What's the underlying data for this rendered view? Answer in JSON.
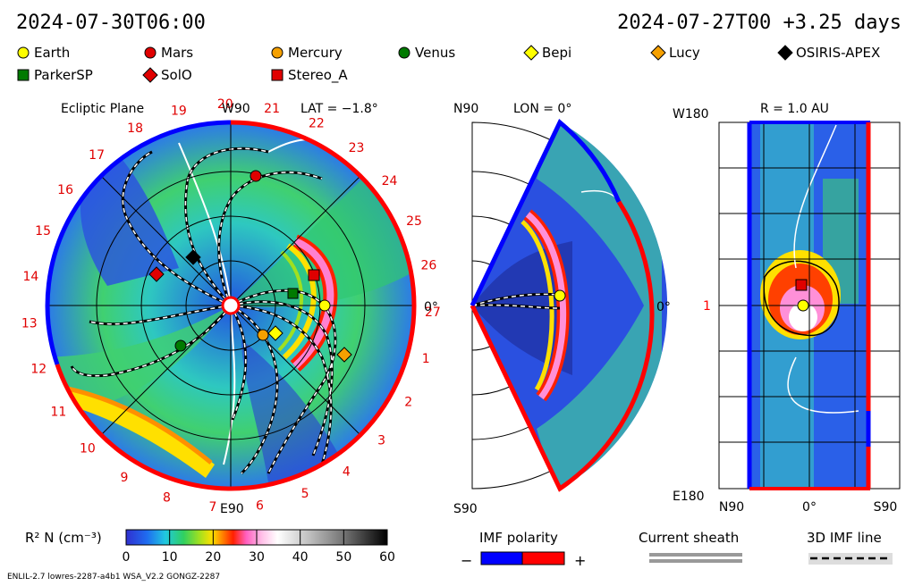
{
  "header": {
    "sim_time": "2024-07-30T06:00",
    "ref_time": "2024-07-27T00 +3.25 days"
  },
  "legend": [
    {
      "label": "Earth",
      "shape": "circle",
      "color": "#ffff00"
    },
    {
      "label": "Mars",
      "shape": "circle",
      "color": "#e00000"
    },
    {
      "label": "Mercury",
      "shape": "circle",
      "color": "#f5a000"
    },
    {
      "label": "Venus",
      "shape": "circle",
      "color": "#007a00"
    },
    {
      "label": "Bepi",
      "shape": "diamond",
      "color": "#ffff00"
    },
    {
      "label": "Lucy",
      "shape": "diamond",
      "color": "#f5a000"
    },
    {
      "label": "OSIRIS-APEX",
      "shape": "diamond",
      "color": "#000000"
    },
    {
      "label": "ParkerSP",
      "shape": "square",
      "color": "#007a00"
    },
    {
      "label": "SolO",
      "shape": "diamond",
      "color": "#e00000"
    },
    {
      "label": "Stereo_A",
      "shape": "square",
      "color": "#e00000"
    }
  ],
  "panels": {
    "ecliptic": {
      "title": "Ecliptic Plane",
      "top": "W90",
      "bottom": "E90",
      "right": "0°",
      "lat": "LAT = −1.8°",
      "sectors": [
        "19",
        "20",
        "21",
        "22",
        "23",
        "24",
        "25",
        "26",
        "27",
        "1",
        "2",
        "3",
        "4",
        "5",
        "6",
        "7",
        "8",
        "9",
        "10",
        "11",
        "12",
        "13",
        "14",
        "15",
        "16",
        "17",
        "18"
      ]
    },
    "meridional": {
      "top": "N90",
      "bottom": "S90",
      "lon": "LON = 0°",
      "right": "0°"
    },
    "sphere": {
      "top_left": "W180",
      "title": "R = 1.0 AU",
      "left_mid": "1",
      "bottom_left": "E180",
      "x_axis": [
        "N90",
        "0°",
        "S90"
      ]
    }
  },
  "chart_data": [
    {
      "type": "heatmap",
      "title": "",
      "colorbar": {
        "label": "R² N (cm⁻³)",
        "ticks": [
          0,
          10,
          20,
          30,
          40,
          50,
          60
        ],
        "range": [
          0,
          60
        ],
        "colors": [
          "#3030d0",
          "#1f8cf0",
          "#20e0d0",
          "#30d060",
          "#a0e020",
          "#ffe000",
          "#ff8000",
          "#ff2000",
          "#ff60c0",
          "#ffb0e0",
          "#ffffff",
          "#c0c0c0",
          "#808080",
          "#404040",
          "#000000"
        ]
      }
    }
  ],
  "keys": {
    "imf_label": "IMF polarity",
    "minus": "−",
    "plus": "+",
    "neg_color": "#0000ff",
    "pos_color": "#ff0000",
    "sheath_label": "Current sheath",
    "field_label": "3D IMF line"
  },
  "footer": "ENLIL-2.7 lowres-2287-a4b1 WSA_V2.2 GONGZ-2287"
}
